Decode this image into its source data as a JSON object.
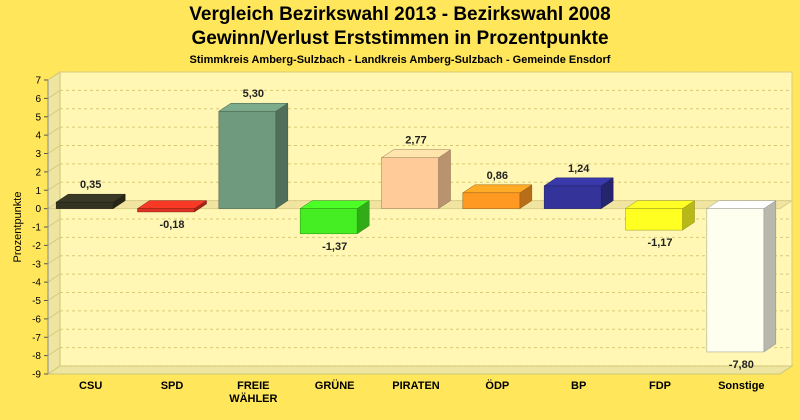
{
  "chart_data": {
    "type": "bar",
    "title": "Vergleich Bezirkswahl 2013 - Bezirkswahl 2008",
    "subtitle": "Gewinn/Verlust Erststimmen in Prozentpunkte",
    "subsubtitle": "Stimmkreis Amberg-Sulzbach - Landkreis Amberg-Sulzbach - Gemeinde Ensdorf",
    "ylabel": "Prozentpunkte",
    "xlabel": "",
    "ylim": [
      -9,
      7
    ],
    "yticks": [
      7,
      6,
      5,
      4,
      3,
      2,
      1,
      0,
      -1,
      -2,
      -3,
      -4,
      -5,
      -6,
      -7,
      -8,
      -9
    ],
    "ytick_labels": [
      "7",
      "6",
      "5",
      "4",
      "3",
      "2",
      "1",
      "0",
      "-1",
      "-2",
      "-3",
      "-4",
      "-5",
      "-6",
      "-7",
      "-8",
      "-9"
    ],
    "grid": true,
    "categories": [
      "CSU",
      "SPD",
      "FREIE WÄHLER",
      "GRÜNE",
      "PIRATEN",
      "ÖDP",
      "BP",
      "FDP",
      "Sonstige"
    ],
    "category_lines": [
      [
        "CSU"
      ],
      [
        "SPD"
      ],
      [
        "FREIE",
        "WÄHLER"
      ],
      [
        "GRÜNE"
      ],
      [
        "PIRATEN"
      ],
      [
        "ÖDP"
      ],
      [
        "BP"
      ],
      [
        "FDP"
      ],
      [
        "Sonstige"
      ]
    ],
    "values": [
      0.35,
      -0.18,
      5.3,
      -1.37,
      2.77,
      0.86,
      1.24,
      -1.17,
      -7.8
    ],
    "value_labels": [
      "0,35",
      "-0,18",
      "5,30",
      "-1,37",
      "2,77",
      "0,86",
      "1,24",
      "-1,17",
      "-7,80"
    ],
    "colors": [
      "#333322",
      "#dd3322",
      "#6f9a7d",
      "#44ee22",
      "#ffcc99",
      "#ff9922",
      "#333399",
      "#ffff22",
      "#fffff0"
    ]
  }
}
